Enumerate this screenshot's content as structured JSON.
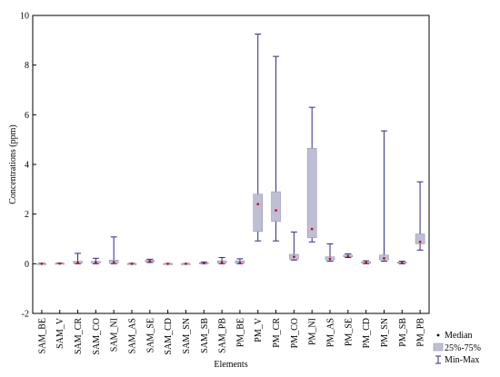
{
  "chart_data": {
    "type": "boxplot",
    "xlabel": "Elements",
    "ylabel": "Concentrations (ppm)",
    "ylim": [
      -2,
      10
    ],
    "yticks": [
      -2,
      0,
      2,
      4,
      6,
      8,
      10
    ],
    "grid": false,
    "legend_position": "bottom-right",
    "legend": {
      "median": "Median",
      "box": "25%-75%",
      "whisker": "Min-Max"
    },
    "colors": {
      "box_fill": "#bfbfd4",
      "box_stroke": "#8a8aa8",
      "whisker": "#2b2b8c",
      "median": "#cc0000"
    },
    "categories": [
      "SAM_BE",
      "SAM_V",
      "SAM_CR",
      "SAM_CO",
      "SAM_NI",
      "SAM_AS",
      "SAM_SE",
      "SAM_CD",
      "SAM_SN",
      "SAM_SB",
      "SAM_PB",
      "PM_BE",
      "PM_V",
      "PM_CR",
      "PM_CO",
      "PM_NI",
      "PM_AS",
      "PM_SE",
      "PM_CD",
      "PM_SN",
      "PM_SB",
      "PM_PB"
    ],
    "series": [
      {
        "min": 0.0,
        "q1": 0.0,
        "median": 0.0,
        "q3": 0.01,
        "max": 0.02
      },
      {
        "min": 0.0,
        "q1": 0.0,
        "median": 0.01,
        "q3": 0.02,
        "max": 0.03
      },
      {
        "min": 0.0,
        "q1": 0.02,
        "median": 0.05,
        "q3": 0.1,
        "max": 0.42
      },
      {
        "min": 0.0,
        "q1": 0.03,
        "median": 0.06,
        "q3": 0.1,
        "max": 0.22
      },
      {
        "min": 0.0,
        "q1": 0.03,
        "median": 0.07,
        "q3": 0.15,
        "max": 1.08
      },
      {
        "min": 0.0,
        "q1": 0.0,
        "median": 0.0,
        "q3": 0.01,
        "max": 0.02
      },
      {
        "min": 0.05,
        "q1": 0.08,
        "median": 0.1,
        "q3": 0.14,
        "max": 0.18
      },
      {
        "min": 0.0,
        "q1": 0.0,
        "median": 0.0,
        "q3": 0.01,
        "max": 0.01
      },
      {
        "min": 0.0,
        "q1": 0.0,
        "median": 0.0,
        "q3": 0.01,
        "max": 0.01
      },
      {
        "min": 0.0,
        "q1": 0.01,
        "median": 0.02,
        "q3": 0.04,
        "max": 0.07
      },
      {
        "min": 0.0,
        "q1": 0.03,
        "median": 0.06,
        "q3": 0.12,
        "max": 0.25
      },
      {
        "min": 0.0,
        "q1": 0.02,
        "median": 0.05,
        "q3": 0.12,
        "max": 0.2
      },
      {
        "min": 0.92,
        "q1": 1.3,
        "median": 2.4,
        "q3": 2.8,
        "max": 9.25
      },
      {
        "min": 0.92,
        "q1": 1.7,
        "median": 2.15,
        "q3": 2.9,
        "max": 8.35
      },
      {
        "min": 0.15,
        "q1": 0.18,
        "median": 0.28,
        "q3": 0.38,
        "max": 1.28
      },
      {
        "min": 0.88,
        "q1": 1.05,
        "median": 1.4,
        "q3": 4.65,
        "max": 6.3
      },
      {
        "min": 0.1,
        "q1": 0.15,
        "median": 0.2,
        "q3": 0.28,
        "max": 0.8
      },
      {
        "min": 0.25,
        "q1": 0.28,
        "median": 0.3,
        "q3": 0.35,
        "max": 0.4
      },
      {
        "min": 0.0,
        "q1": 0.02,
        "median": 0.05,
        "q3": 0.08,
        "max": 0.12
      },
      {
        "min": 0.1,
        "q1": 0.15,
        "median": 0.22,
        "q3": 0.35,
        "max": 5.35
      },
      {
        "min": 0.0,
        "q1": 0.02,
        "median": 0.04,
        "q3": 0.07,
        "max": 0.1
      },
      {
        "min": 0.55,
        "q1": 0.8,
        "median": 0.88,
        "q3": 1.2,
        "max": 3.3
      }
    ]
  }
}
